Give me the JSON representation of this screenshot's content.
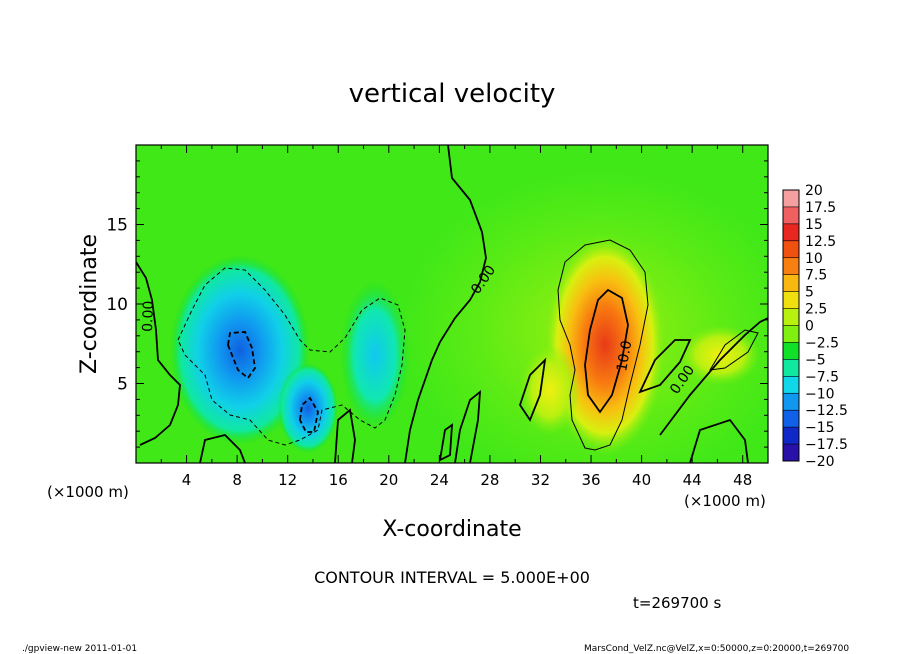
{
  "chart_data": {
    "type": "heatmap",
    "title": "vertical velocity",
    "xlabel": "X-coordinate",
    "ylabel": "Z-coordinate",
    "x_unit": "(×1000 m)",
    "y_unit": "(×1000 m)",
    "xlim": [
      0,
      50
    ],
    "ylim": [
      0,
      20
    ],
    "xticks": [
      "4",
      "8",
      "12",
      "16",
      "20",
      "24",
      "28",
      "32",
      "36",
      "40",
      "44",
      "48"
    ],
    "yticks": [
      "5",
      "10",
      "15"
    ],
    "colorbar": {
      "labels": [
        "20",
        "17.5",
        "15",
        "12.5",
        "10",
        "7.5",
        "5",
        "2.5",
        "0",
        "−2.5",
        "−5",
        "−7.5",
        "−10",
        "−12.5",
        "−15",
        "−17.5",
        "−20"
      ],
      "colors": [
        "#f4a0a0",
        "#f06060",
        "#e82820",
        "#f05010",
        "#f88010",
        "#f8b810",
        "#f0e010",
        "#b8f010",
        "#80f010",
        "#10e028",
        "#10e8a0",
        "#10d8e8",
        "#1098f0",
        "#1060e8",
        "#1028c8",
        "#2810a8",
        "#6018c0"
      ]
    },
    "features": [
      {
        "kind": "updraft",
        "x": 37,
        "z": 7,
        "peak": 15
      },
      {
        "kind": "downdraft",
        "x": 8.5,
        "z": 7,
        "peak": -12.5
      },
      {
        "kind": "downdraft",
        "x": 13.5,
        "z": 3,
        "peak": -12.5
      },
      {
        "kind": "downdraft",
        "x": 19,
        "z": 8,
        "peak": -7.5
      }
    ],
    "contour_labels": [
      "0.00",
      "0.00",
      "0.00",
      "10.0"
    ],
    "contour_interval": "CONTOUR INTERVAL = 5.000E+00",
    "time": "t=269700 s"
  },
  "footer": {
    "left": "./gpview-new   2011-01-01",
    "right": "MarsCond_VelZ.nc@VelZ,x=0:50000,z=0:20000,t=269700"
  }
}
